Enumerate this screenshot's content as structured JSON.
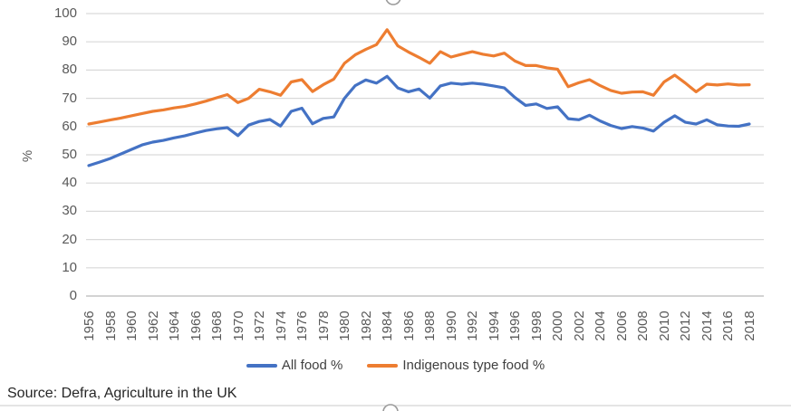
{
  "chart_data": {
    "type": "line",
    "title": "",
    "xlabel": "",
    "ylabel": "%",
    "ylim": [
      0,
      100
    ],
    "yticks": [
      0,
      10,
      20,
      30,
      40,
      50,
      60,
      70,
      80,
      90,
      100
    ],
    "x": [
      1956,
      1957,
      1958,
      1959,
      1960,
      1961,
      1962,
      1963,
      1964,
      1965,
      1966,
      1967,
      1968,
      1969,
      1970,
      1971,
      1972,
      1973,
      1974,
      1975,
      1976,
      1977,
      1978,
      1979,
      1980,
      1981,
      1982,
      1983,
      1984,
      1985,
      1986,
      1987,
      1988,
      1989,
      1990,
      1991,
      1992,
      1993,
      1994,
      1995,
      1996,
      1997,
      1998,
      1999,
      2000,
      2001,
      2002,
      2003,
      2004,
      2005,
      2006,
      2007,
      2008,
      2009,
      2010,
      2011,
      2012,
      2013,
      2014,
      2015,
      2016,
      2017,
      2018
    ],
    "x_tick_labels": [
      "1956",
      "1958",
      "1960",
      "1962",
      "1964",
      "1966",
      "1968",
      "1970",
      "1972",
      "1974",
      "1976",
      "1978",
      "1980",
      "1982",
      "1984",
      "1986",
      "1988",
      "1990",
      "1992",
      "1994",
      "1996",
      "1998",
      "2000",
      "2002",
      "2004",
      "2006",
      "2008",
      "2010",
      "2012",
      "2014",
      "2016",
      "2018"
    ],
    "grid": "horizontal",
    "gridline_color": "#d9d9d9",
    "baseline_color": "#b9b9b9",
    "axis_label_color": "#595959",
    "legend_position": "bottom",
    "series": [
      {
        "name": "All food %",
        "color": "#4472C4",
        "values": [
          46.2,
          47.4,
          48.7,
          50.3,
          51.9,
          53.5,
          54.5,
          55.1,
          56.0,
          56.7,
          57.7,
          58.6,
          59.2,
          59.6,
          56.8,
          60.5,
          61.8,
          62.5,
          60.2,
          65.4,
          66.5,
          61.0,
          62.9,
          63.4,
          70.0,
          74.5,
          76.5,
          75.4,
          77.8,
          73.7,
          72.3,
          73.3,
          70.1,
          74.4,
          75.4,
          75.0,
          75.4,
          75.0,
          74.4,
          73.7,
          70.3,
          67.5,
          68.0,
          66.4,
          67.0,
          62.8,
          62.4,
          64.0,
          62.0,
          60.4,
          59.3,
          60.0,
          59.5,
          58.4,
          61.5,
          63.8,
          61.5,
          60.9,
          62.4,
          60.6,
          60.2,
          60.1,
          60.9
        ]
      },
      {
        "name": "Indigenous type food %",
        "color": "#ED7D31",
        "values": [
          60.9,
          61.6,
          62.3,
          63.0,
          63.8,
          64.6,
          65.4,
          65.9,
          66.6,
          67.1,
          68.0,
          69.0,
          70.2,
          71.3,
          68.5,
          70.0,
          73.2,
          72.3,
          71.1,
          75.8,
          76.6,
          72.4,
          74.8,
          76.8,
          82.4,
          85.4,
          87.3,
          89.0,
          94.3,
          88.6,
          86.4,
          84.5,
          82.4,
          86.5,
          84.6,
          85.6,
          86.5,
          85.6,
          85.0,
          86.0,
          83.2,
          81.6,
          81.6,
          80.8,
          80.3,
          74.1,
          75.5,
          76.6,
          74.5,
          72.8,
          71.8,
          72.2,
          72.3,
          71.1,
          75.8,
          78.2,
          75.4,
          72.3,
          75.0,
          74.7,
          75.1,
          74.7,
          74.8
        ]
      }
    ]
  },
  "source": {
    "text": "Source: Defra, Agriculture in the UK"
  },
  "selection": {
    "top_handle_icon": "resize-handle-icon",
    "bottom_handle_icon": "resize-handle-icon"
  }
}
